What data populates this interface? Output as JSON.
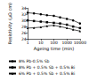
{
  "chart_data": {
    "type": "line",
    "x_label": "Ageing time (min)",
    "y_label": "Resistivity (μΩ cm)",
    "x": [
      1,
      3,
      10,
      30,
      100,
      300,
      1000,
      3000,
      10000
    ],
    "series": [
      {
        "name": "8% Pb-0.5% Sb",
        "color": "#000000",
        "marker": "circle",
        "values": [
          32.5,
          32.3,
          32.0,
          31.7,
          31.5,
          31.0,
          30.5,
          30.0,
          29.0
        ]
      },
      {
        "name": "8% Pb + 0.5% Sb + 0.5% Bi",
        "color": "#000000",
        "marker": "square",
        "values": [
          30.0,
          29.8,
          29.6,
          29.4,
          29.2,
          29.0,
          28.6,
          28.0,
          27.5
        ]
      },
      {
        "name": "6% Pb + 0.5% Sb + 0.5% Bi",
        "color": "#000000",
        "marker": "triangle",
        "values": [
          27.5,
          27.6,
          27.8,
          28.2,
          28.4,
          28.0,
          27.5,
          27.0,
          26.5
        ]
      }
    ],
    "log": "x",
    "xlim": [
      1,
      10000
    ],
    "xticks": [
      1,
      10,
      100,
      1000,
      10000
    ],
    "ylim": [
      24,
      34
    ],
    "yticks": [
      24,
      26,
      28,
      30,
      32,
      34
    ],
    "grid": false,
    "legend": "bottom-left"
  }
}
